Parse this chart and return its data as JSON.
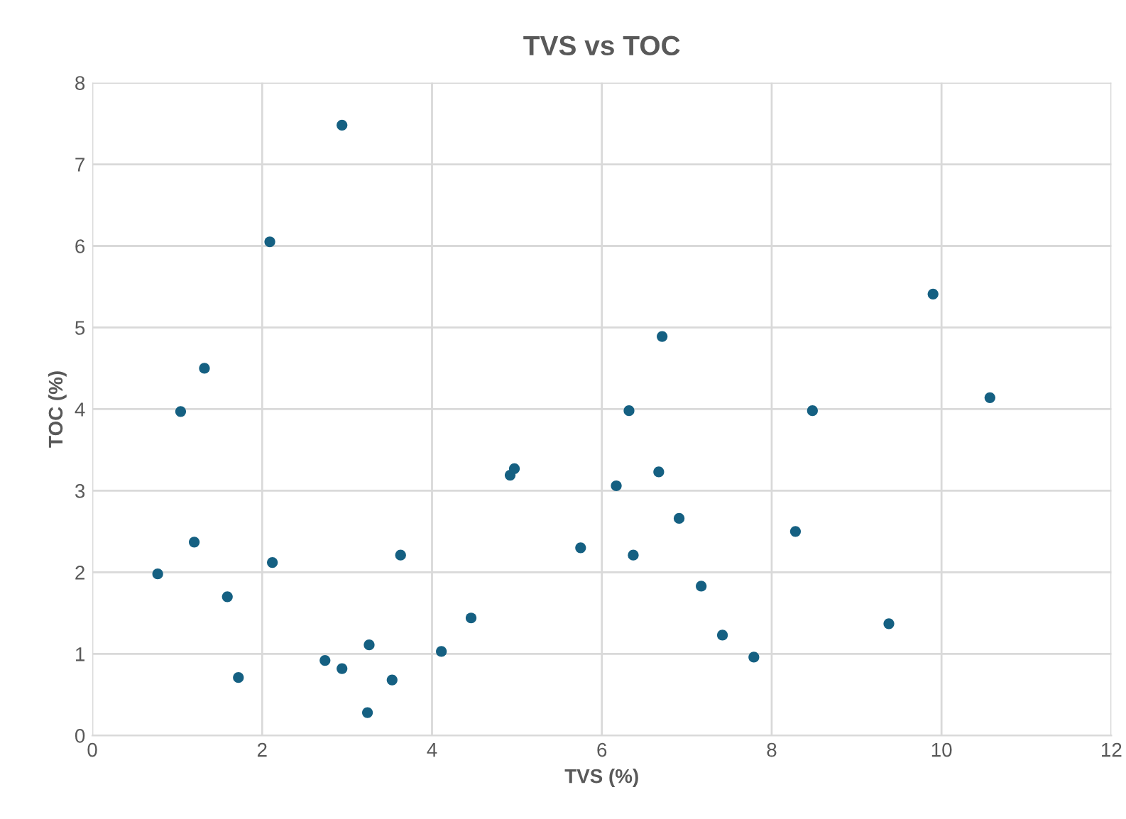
{
  "chart_data": {
    "type": "scatter",
    "title": "TVS vs TOC",
    "xlabel": "TVS (%)",
    "ylabel": "TOC (%)",
    "series": [
      {
        "color": "#156082",
        "x": [
          2.94,
          2.09,
          1.32,
          1.04,
          1.2,
          0.77,
          1.59,
          2.12,
          1.72,
          2.74,
          2.94,
          3.26,
          3.24,
          3.53,
          3.63,
          4.11,
          4.46,
          4.92,
          4.97,
          5.75,
          6.17,
          6.32,
          6.37,
          6.67,
          6.71,
          6.91,
          7.17,
          7.42,
          7.79,
          8.28,
          8.48,
          9.38,
          9.9,
          10.57
        ],
        "values": [
          7.48,
          6.05,
          4.5,
          3.97,
          2.37,
          1.98,
          1.7,
          2.12,
          0.71,
          0.92,
          0.82,
          1.11,
          0.28,
          0.68,
          2.21,
          1.03,
          1.44,
          3.19,
          3.27,
          2.3,
          3.06,
          3.98,
          2.21,
          3.23,
          4.89,
          2.66,
          1.83,
          1.23,
          0.96,
          2.5,
          3.98,
          1.37,
          5.41,
          4.14
        ]
      }
    ],
    "xlim": [
      0,
      12
    ],
    "xticks": [
      0,
      2,
      4,
      6,
      8,
      10,
      12
    ],
    "ylim": [
      0,
      8
    ],
    "yticks": [
      0,
      1,
      2,
      3,
      4,
      5,
      6,
      7,
      8
    ],
    "grid": true,
    "marker": "circle",
    "legend": false
  }
}
